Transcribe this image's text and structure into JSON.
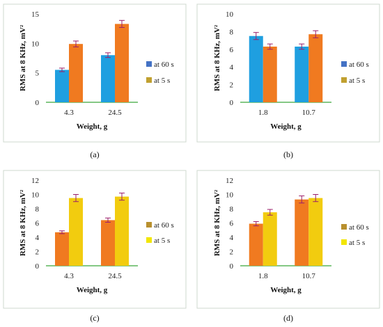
{
  "colors": {
    "blue_bar": "#1f9fe0",
    "orange_bar": "#f07a20",
    "yellow_bar": "#f2cc0f",
    "error_bar": "#9b1f6a",
    "legend_blue": "#4472c4",
    "legend_gold": "#c0a030",
    "legend_gold_dark": "#b8902e",
    "legend_yellow": "#f2e600",
    "baseline": "#3aa83a"
  },
  "chart_data": [
    {
      "type": "bar",
      "panel_label": "(a)",
      "categories": [
        "4.3",
        "24.5"
      ],
      "series": [
        {
          "name": "at 60 s",
          "values": [
            5.5,
            8.0
          ],
          "errors": [
            0.3,
            0.4
          ]
        },
        {
          "name": "at 5 s",
          "values": [
            9.9,
            13.3
          ],
          "errors": [
            0.5,
            0.6
          ]
        }
      ],
      "xlabel": "Weight, g",
      "ylabel": "RMS at 8 KHz, mV²",
      "ylim": [
        0,
        15
      ],
      "yticks": [
        "0",
        "5",
        "10",
        "15"
      ],
      "legend_position": "right",
      "bar_colors": [
        "blue_bar",
        "orange_bar"
      ],
      "legend_colors": [
        "legend_blue",
        "legend_gold"
      ]
    },
    {
      "type": "bar",
      "panel_label": "(b)",
      "categories": [
        "1.8",
        "10.7"
      ],
      "series": [
        {
          "name": "at 60 s",
          "values": [
            7.5,
            6.3
          ],
          "errors": [
            0.4,
            0.3
          ]
        },
        {
          "name": "at 5 s",
          "values": [
            6.3,
            7.7
          ],
          "errors": [
            0.3,
            0.4
          ]
        }
      ],
      "xlabel": "Weight, g",
      "ylabel": "RMS at 8 KHz, mV²",
      "ylim": [
        0,
        10
      ],
      "yticks": [
        "0",
        "2",
        "4",
        "6",
        "8",
        "10"
      ],
      "legend_position": "right",
      "bar_colors": [
        "blue_bar",
        "orange_bar"
      ],
      "legend_colors": [
        "legend_blue",
        "legend_gold"
      ]
    },
    {
      "type": "bar",
      "panel_label": "(c)",
      "categories": [
        "4.3",
        "24.5"
      ],
      "series": [
        {
          "name": "at 60 s",
          "values": [
            4.7,
            6.4
          ],
          "errors": [
            0.2,
            0.3
          ]
        },
        {
          "name": "at 5 s",
          "values": [
            9.5,
            9.7
          ],
          "errors": [
            0.5,
            0.5
          ]
        }
      ],
      "xlabel": "Weight, g",
      "ylabel": "RMS at 8 KHz, mV²",
      "ylim": [
        0,
        12
      ],
      "yticks": [
        "0",
        "2",
        "4",
        "6",
        "8",
        "10",
        "12"
      ],
      "legend_position": "right",
      "bar_colors": [
        "orange_bar",
        "yellow_bar"
      ],
      "legend_colors": [
        "legend_gold_dark",
        "legend_yellow"
      ]
    },
    {
      "type": "bar",
      "panel_label": "(d)",
      "categories": [
        "1.8",
        "10.7"
      ],
      "series": [
        {
          "name": "at 60 s",
          "values": [
            5.9,
            9.3
          ],
          "errors": [
            0.3,
            0.5
          ]
        },
        {
          "name": "at 5 s",
          "values": [
            7.5,
            9.5
          ],
          "errors": [
            0.4,
            0.5
          ]
        }
      ],
      "xlabel": "Weight, g",
      "ylabel": "RMS at 8 KHz, mV²",
      "ylim": [
        0,
        12
      ],
      "yticks": [
        "0",
        "2",
        "4",
        "6",
        "8",
        "10",
        "12"
      ],
      "legend_position": "right",
      "bar_colors": [
        "orange_bar",
        "yellow_bar"
      ],
      "legend_colors": [
        "legend_gold_dark",
        "legend_yellow"
      ]
    }
  ]
}
